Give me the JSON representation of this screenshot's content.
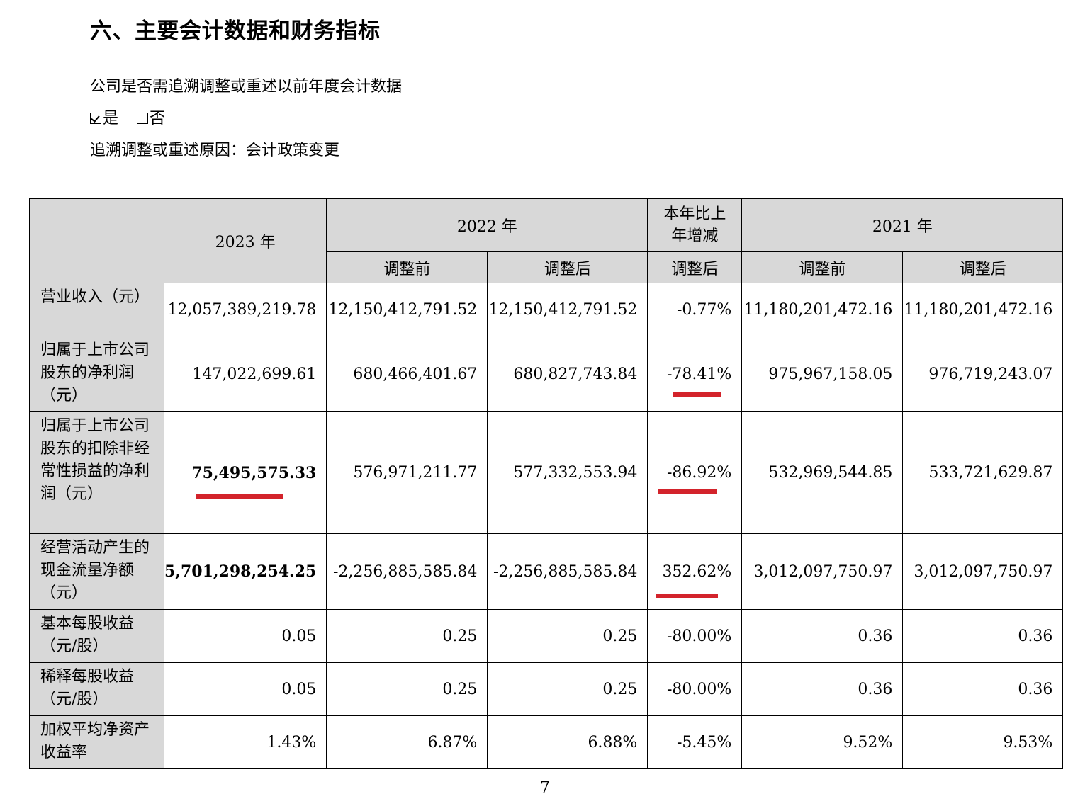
{
  "heading": "六、主要会计数据和财务指标",
  "question": "公司是否需追溯调整或重述以前年度会计数据",
  "choice": {
    "yes_label": "是",
    "no_label": "否",
    "selected": "是"
  },
  "reason": "追溯调整或重述原因：会计政策变更",
  "table": {
    "header": {
      "y2023": "2023 年",
      "y2022": "2022 年",
      "change": "本年比上年增减",
      "y2021": "2021 年",
      "before": "调整前",
      "after": "调整后",
      "change_after": "调整后",
      "before_2021": "调整前",
      "after_2021": "调整后"
    },
    "rows": [
      {
        "label": "营业收入（元）",
        "v2023": "12,057,389,219.78",
        "v2022_before": "12,150,412,791.52",
        "v2022_after": "12,150,412,791.52",
        "change": "-0.77%",
        "v2021_before": "11,180,201,472.16",
        "v2021_after": "11,180,201,472.16"
      },
      {
        "label": "归属于上市公司股东的净利润（元）",
        "v2023": "147,022,699.61",
        "v2022_before": "680,466,401.67",
        "v2022_after": "680,827,743.84",
        "change": "-78.41%",
        "v2021_before": "975,967,158.05",
        "v2021_after": "976,719,243.07"
      },
      {
        "label": "归属于上市公司股东的扣除非经常性损益的净利润（元）",
        "v2023": "75,495,575.33",
        "v2022_before": "576,971,211.77",
        "v2022_after": "577,332,553.94",
        "change": "-86.92%",
        "v2021_before": "532,969,544.85",
        "v2021_after": "533,721,629.87"
      },
      {
        "label": "经营活动产生的现金流量净额（元）",
        "v2023": "5,701,298,254.25",
        "v2022_before": "-2,256,885,585.84",
        "v2022_after": "-2,256,885,585.84",
        "change": "352.62%",
        "v2021_before": "3,012,097,750.97",
        "v2021_after": "3,012,097,750.97"
      },
      {
        "label": "基本每股收益（元/股）",
        "v2023": "0.05",
        "v2022_before": "0.25",
        "v2022_after": "0.25",
        "change": "-80.00%",
        "v2021_before": "0.36",
        "v2021_after": "0.36"
      },
      {
        "label": "稀释每股收益（元/股）",
        "v2023": "0.05",
        "v2022_before": "0.25",
        "v2022_after": "0.25",
        "change": "-80.00%",
        "v2021_before": "0.36",
        "v2021_after": "0.36"
      },
      {
        "label": "加权平均净资产收益率",
        "v2023": "1.43%",
        "v2022_before": "6.87%",
        "v2022_after": "6.88%",
        "change": "-5.45%",
        "v2021_before": "9.52%",
        "v2021_after": "9.53%"
      }
    ]
  },
  "annotation_color": "#d3232b",
  "page_number": "7"
}
